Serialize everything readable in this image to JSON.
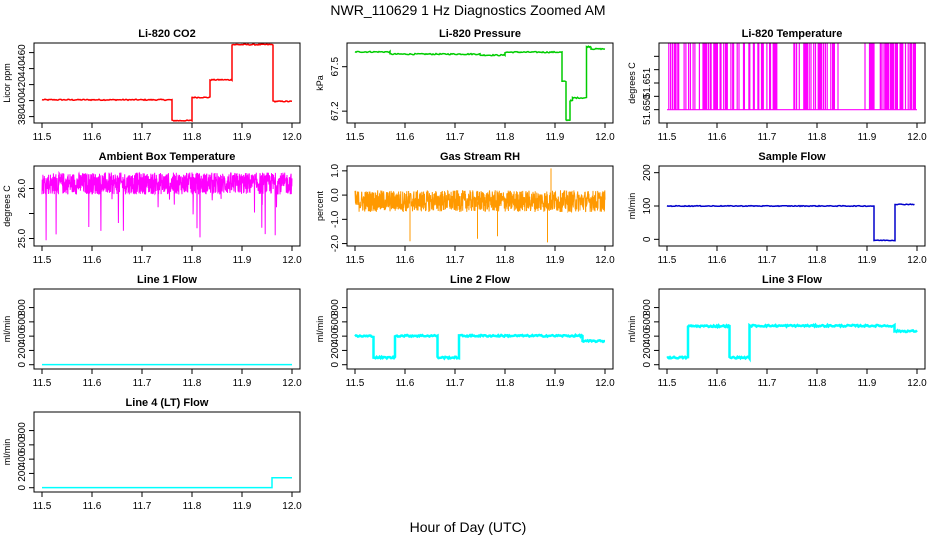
{
  "figure": {
    "title": "NWR_110629  1 Hz Diagnostics Zoomed AM",
    "xlabel": "Hour of Day (UTC)"
  },
  "chart_data": [
    {
      "id": "co2",
      "type": "line",
      "title": "Li-820 CO2",
      "ylabel": "Licor ppm",
      "color": "#ff0000",
      "xlim": [
        11.5,
        12.0
      ],
      "ylim": [
        372,
        472
      ],
      "xticks": [
        11.5,
        11.6,
        11.7,
        11.8,
        11.9,
        12.0
      ],
      "yticks": [
        380,
        400,
        420,
        440,
        460
      ],
      "segments": [
        {
          "x0": 11.5,
          "x1": 11.76,
          "y": 401
        },
        {
          "x0": 11.76,
          "x1": 11.8,
          "y": 375
        },
        {
          "x0": 11.8,
          "x1": 11.836,
          "y": 404
        },
        {
          "x0": 11.836,
          "x1": 11.88,
          "y": 426
        },
        {
          "x0": 11.88,
          "x1": 11.962,
          "y": 470
        },
        {
          "x0": 11.962,
          "x1": 12.0,
          "y": 399
        }
      ],
      "noise": 0.7
    },
    {
      "id": "pressure",
      "type": "line",
      "title": "Li-820 Pressure",
      "ylabel": "kPa",
      "color": "#00cc00",
      "xlim": [
        11.5,
        12.0
      ],
      "ylim": [
        67.12,
        67.66
      ],
      "xticks": [
        11.5,
        11.6,
        11.7,
        11.8,
        11.9,
        12.0
      ],
      "yticks": [
        67.2,
        67.5
      ],
      "segments": [
        {
          "x0": 11.5,
          "x1": 11.57,
          "y": 67.6
        },
        {
          "x0": 11.57,
          "x1": 11.75,
          "y": 67.585
        },
        {
          "x0": 11.75,
          "x1": 11.8,
          "y": 67.578
        },
        {
          "x0": 11.8,
          "x1": 11.914,
          "y": 67.598
        },
        {
          "x0": 11.914,
          "x1": 11.922,
          "y": 67.4
        },
        {
          "x0": 11.922,
          "x1": 11.93,
          "y": 67.14
        },
        {
          "x0": 11.93,
          "x1": 11.935,
          "y": 67.27
        },
        {
          "x0": 11.935,
          "x1": 11.963,
          "y": 67.29
        },
        {
          "x0": 11.963,
          "x1": 11.972,
          "y": 67.635
        },
        {
          "x0": 11.972,
          "x1": 12.0,
          "y": 67.62
        }
      ],
      "noise": 0.004
    },
    {
      "id": "temperature",
      "type": "line",
      "title": "Li-820 Temperature",
      "ylabel": "degrees C",
      "color": "#ff00ff",
      "xlim": [
        11.5,
        12.0
      ],
      "ylim": [
        51.6495,
        51.6525
      ],
      "xticks": [
        11.5,
        11.6,
        11.7,
        11.8,
        11.9,
        12.0
      ],
      "yticks": [
        51.65,
        51.6505,
        51.651,
        51.6515,
        51.652
      ],
      "ytick_labels": [
        "51.650",
        "",
        "51.651",
        "",
        ""
      ],
      "levels": {
        "low": 51.65,
        "high": 51.6525
      },
      "gaps": [
        [
          11.72,
          11.752
        ],
        [
          11.85,
          11.895
        ],
        [
          11.915,
          11.925
        ]
      ]
    },
    {
      "id": "ambient",
      "type": "line",
      "title": "Ambient Box Temperature",
      "ylabel": "degrees C",
      "color": "#ff00ff",
      "xlim": [
        11.5,
        12.0
      ],
      "ylim": [
        24.85,
        26.45
      ],
      "xticks": [
        11.5,
        11.6,
        11.7,
        11.8,
        11.9,
        12.0
      ],
      "yticks": [
        25.0,
        25.5,
        26.0
      ],
      "ytick_labels": [
        "25.0",
        "",
        "26.0"
      ],
      "base": 26.1,
      "spread": 0.22,
      "dip_min": 24.95
    },
    {
      "id": "rh",
      "type": "line",
      "title": "Gas Stream RH",
      "ylabel": "percent",
      "color": "#ff9900",
      "xlim": [
        11.5,
        12.0
      ],
      "ylim": [
        -2.1,
        1.2
      ],
      "xticks": [
        11.5,
        11.6,
        11.7,
        11.8,
        11.9,
        12.0
      ],
      "yticks": [
        -2,
        -1,
        0,
        1
      ],
      "ytick_labels": [
        "-2.0",
        "-1.0",
        "0.0",
        "1.0"
      ],
      "base": -0.25,
      "spread": 0.45,
      "spikes": [
        [
          11.61,
          -1.9
        ],
        [
          11.745,
          -1.8
        ],
        [
          11.785,
          -1.7
        ],
        [
          11.885,
          -1.95
        ],
        [
          11.892,
          1.1
        ]
      ]
    },
    {
      "id": "sampleflow",
      "type": "line",
      "title": "Sample Flow",
      "ylabel": "ml/min",
      "color": "#0000cc",
      "xlim": [
        11.5,
        12.0
      ],
      "ylim": [
        -20,
        220
      ],
      "xticks": [
        11.5,
        11.6,
        11.7,
        11.8,
        11.9,
        12.0
      ],
      "yticks": [
        0,
        100,
        200
      ],
      "segments": [
        {
          "x0": 11.5,
          "x1": 11.914,
          "y": 100
        },
        {
          "x0": 11.914,
          "x1": 11.956,
          "y": -3
        },
        {
          "x0": 11.956,
          "x1": 11.995,
          "y": 105
        }
      ],
      "noise": 1.2
    },
    {
      "id": "line1",
      "type": "line",
      "title": "Line 1 Flow",
      "ylabel": "ml/min",
      "color": "#00ffff",
      "xlim": [
        11.5,
        12.0
      ],
      "ylim": [
        -60,
        1060
      ],
      "xticks": [
        11.5,
        11.6,
        11.7,
        11.8,
        11.9,
        12.0
      ],
      "yticks": [
        0,
        200,
        400,
        600,
        800
      ],
      "segments": [
        {
          "x0": 11.5,
          "x1": 12.0,
          "y": 2
        }
      ],
      "noise": 0
    },
    {
      "id": "line2",
      "type": "line",
      "title": "Line 2 Flow",
      "ylabel": "ml/min",
      "color": "#00ffff",
      "xlim": [
        11.5,
        12.0
      ],
      "ylim": [
        -60,
        1060
      ],
      "xticks": [
        11.5,
        11.6,
        11.7,
        11.8,
        11.9,
        12.0
      ],
      "yticks": [
        0,
        200,
        400,
        600,
        800
      ],
      "segments": [
        {
          "x0": 11.5,
          "x1": 11.537,
          "y": 400
        },
        {
          "x0": 11.537,
          "x1": 11.58,
          "y": 100
        },
        {
          "x0": 11.58,
          "x1": 11.665,
          "y": 405
        },
        {
          "x0": 11.665,
          "x1": 11.708,
          "y": 100
        },
        {
          "x0": 11.708,
          "x1": 11.955,
          "y": 405
        },
        {
          "x0": 11.955,
          "x1": 12.0,
          "y": 330
        }
      ],
      "noise": 12
    },
    {
      "id": "line3",
      "type": "line",
      "title": "Line 3 Flow",
      "ylabel": "ml/min",
      "color": "#00ffff",
      "xlim": [
        11.5,
        12.0
      ],
      "ylim": [
        -60,
        1060
      ],
      "xticks": [
        11.5,
        11.6,
        11.7,
        11.8,
        11.9,
        12.0
      ],
      "yticks": [
        0,
        200,
        400,
        600,
        800
      ],
      "segments": [
        {
          "x0": 11.5,
          "x1": 11.542,
          "y": 100
        },
        {
          "x0": 11.542,
          "x1": 11.625,
          "y": 540
        },
        {
          "x0": 11.625,
          "x1": 11.665,
          "y": 100
        },
        {
          "x0": 11.665,
          "x1": 11.955,
          "y": 545
        },
        {
          "x0": 11.955,
          "x1": 12.0,
          "y": 470
        }
      ],
      "noise": 12
    },
    {
      "id": "line4",
      "type": "line",
      "title": "Line 4 (LT) Flow",
      "ylabel": "ml/min",
      "color": "#00ffff",
      "xlim": [
        11.5,
        12.0
      ],
      "ylim": [
        -60,
        1060
      ],
      "xticks": [
        11.5,
        11.6,
        11.7,
        11.8,
        11.9,
        12.0
      ],
      "yticks": [
        0,
        200,
        400,
        600,
        800
      ],
      "segments": [
        {
          "x0": 11.5,
          "x1": 11.96,
          "y": 2
        },
        {
          "x0": 11.96,
          "x1": 12.0,
          "y": 140
        }
      ],
      "noise": 0
    }
  ]
}
